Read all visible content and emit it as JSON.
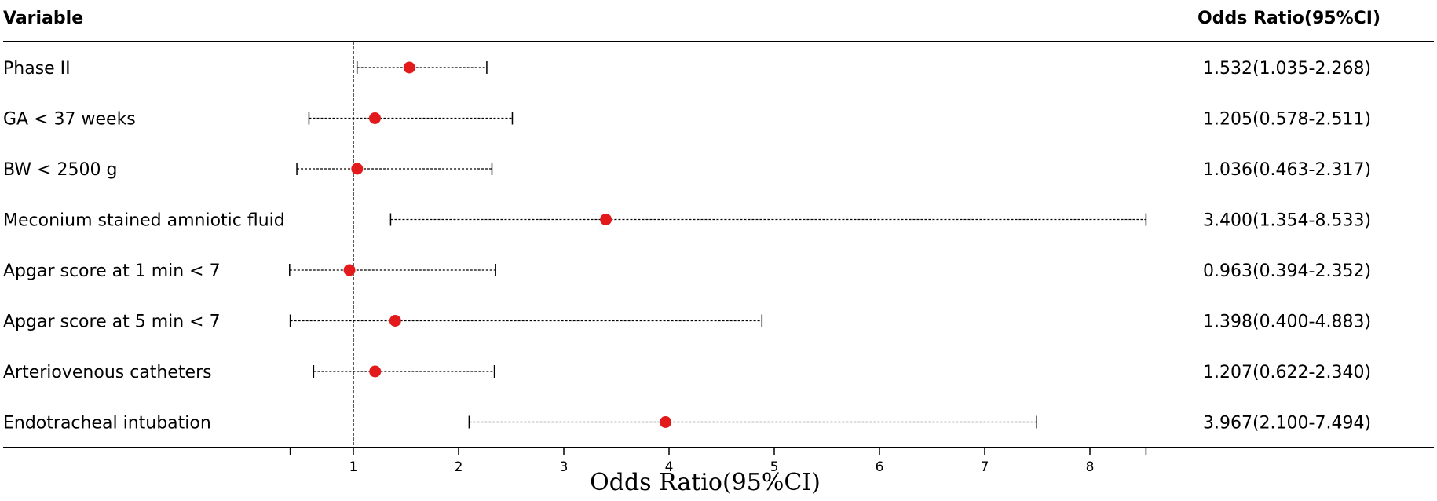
{
  "chart_data": {
    "type": "forest",
    "header": {
      "variable": "Variable",
      "or_ci": "Odds Ratio(95%CI)"
    },
    "xlabel": "Odds Ratio(95%CI)",
    "xlim": [
      0.4,
      8.533
    ],
    "xticks": [
      1,
      2,
      3,
      4,
      5,
      6,
      7,
      8
    ],
    "reference_line": 1,
    "point_color": "#e31a1c",
    "rows": [
      {
        "label": "Phase II",
        "or": 1.532,
        "lower": 1.035,
        "upper": 2.268,
        "text": "1.532(1.035-2.268)"
      },
      {
        "label": "GA < 37 weeks",
        "or": 1.205,
        "lower": 0.578,
        "upper": 2.511,
        "text": "1.205(0.578-2.511)"
      },
      {
        "label": "BW < 2500 g",
        "or": 1.036,
        "lower": 0.463,
        "upper": 2.317,
        "text": "1.036(0.463-2.317)"
      },
      {
        "label": "Meconium stained amniotic fluid",
        "or": 3.4,
        "lower": 1.354,
        "upper": 8.533,
        "text": "3.400(1.354-8.533)"
      },
      {
        "label": "Apgar score at 1 min < 7",
        "or": 0.963,
        "lower": 0.394,
        "upper": 2.352,
        "text": "0.963(0.394-2.352)"
      },
      {
        "label": "Apgar score at 5 min < 7",
        "or": 1.398,
        "lower": 0.4,
        "upper": 4.883,
        "text": "1.398(0.400-4.883)"
      },
      {
        "label": "Arteriovenous catheters",
        "or": 1.207,
        "lower": 0.622,
        "upper": 2.34,
        "text": "1.207(0.622-2.340)"
      },
      {
        "label": "Endotracheal intubation",
        "or": 3.967,
        "lower": 2.1,
        "upper": 7.494,
        "text": "3.967(2.100-7.494)"
      }
    ]
  }
}
